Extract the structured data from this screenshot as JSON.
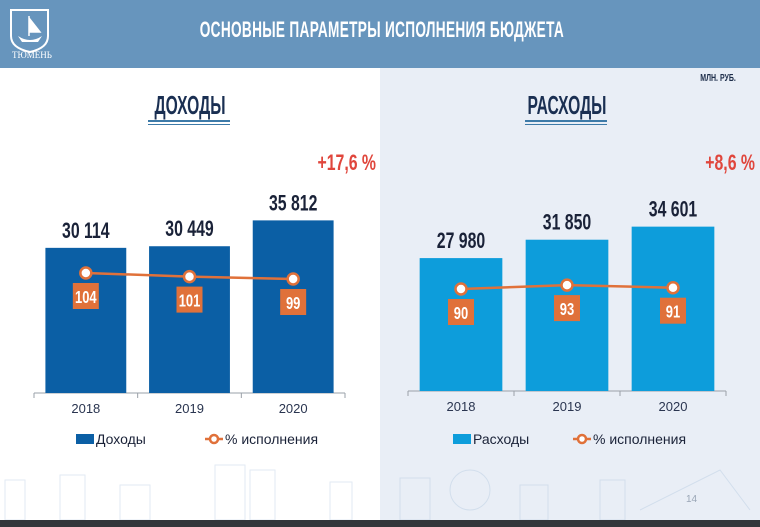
{
  "header": {
    "title": "ОСНОВНЫЕ ПАРАМЕТРЫ ИСПОЛНЕНИЯ БЮДЖЕТА",
    "logo_text": "ТЮМЕНЬ"
  },
  "unit": "МЛН. РУБ.",
  "page_number": "14",
  "chart_data": [
    {
      "type": "bar",
      "title": "ДОХОДЫ",
      "categories": [
        "2018",
        "2019",
        "2020"
      ],
      "series": [
        {
          "name": "Доходы",
          "values": [
            30114,
            30449,
            35812
          ],
          "labels": [
            "30 114",
            "30 449",
            "35 812"
          ],
          "color": "#0b5fa5"
        },
        {
          "name": "% исполнения",
          "type": "line",
          "values": [
            104,
            101,
            99
          ],
          "color": "#e0713a"
        }
      ],
      "annotation": "+17,6 %",
      "annotation_color": "#e0463c"
    },
    {
      "type": "bar",
      "title": "РАСХОДЫ",
      "categories": [
        "2018",
        "2019",
        "2020"
      ],
      "series": [
        {
          "name": "Расходы",
          "values": [
            27980,
            31850,
            34601
          ],
          "labels": [
            "27 980",
            "31 850",
            "34 601"
          ],
          "color": "#0d9ddb"
        },
        {
          "name": "% исполнения",
          "type": "line",
          "values": [
            90,
            93,
            91
          ],
          "color": "#e0713a"
        }
      ],
      "annotation": "+8,6 %",
      "annotation_color": "#e0463c"
    }
  ]
}
